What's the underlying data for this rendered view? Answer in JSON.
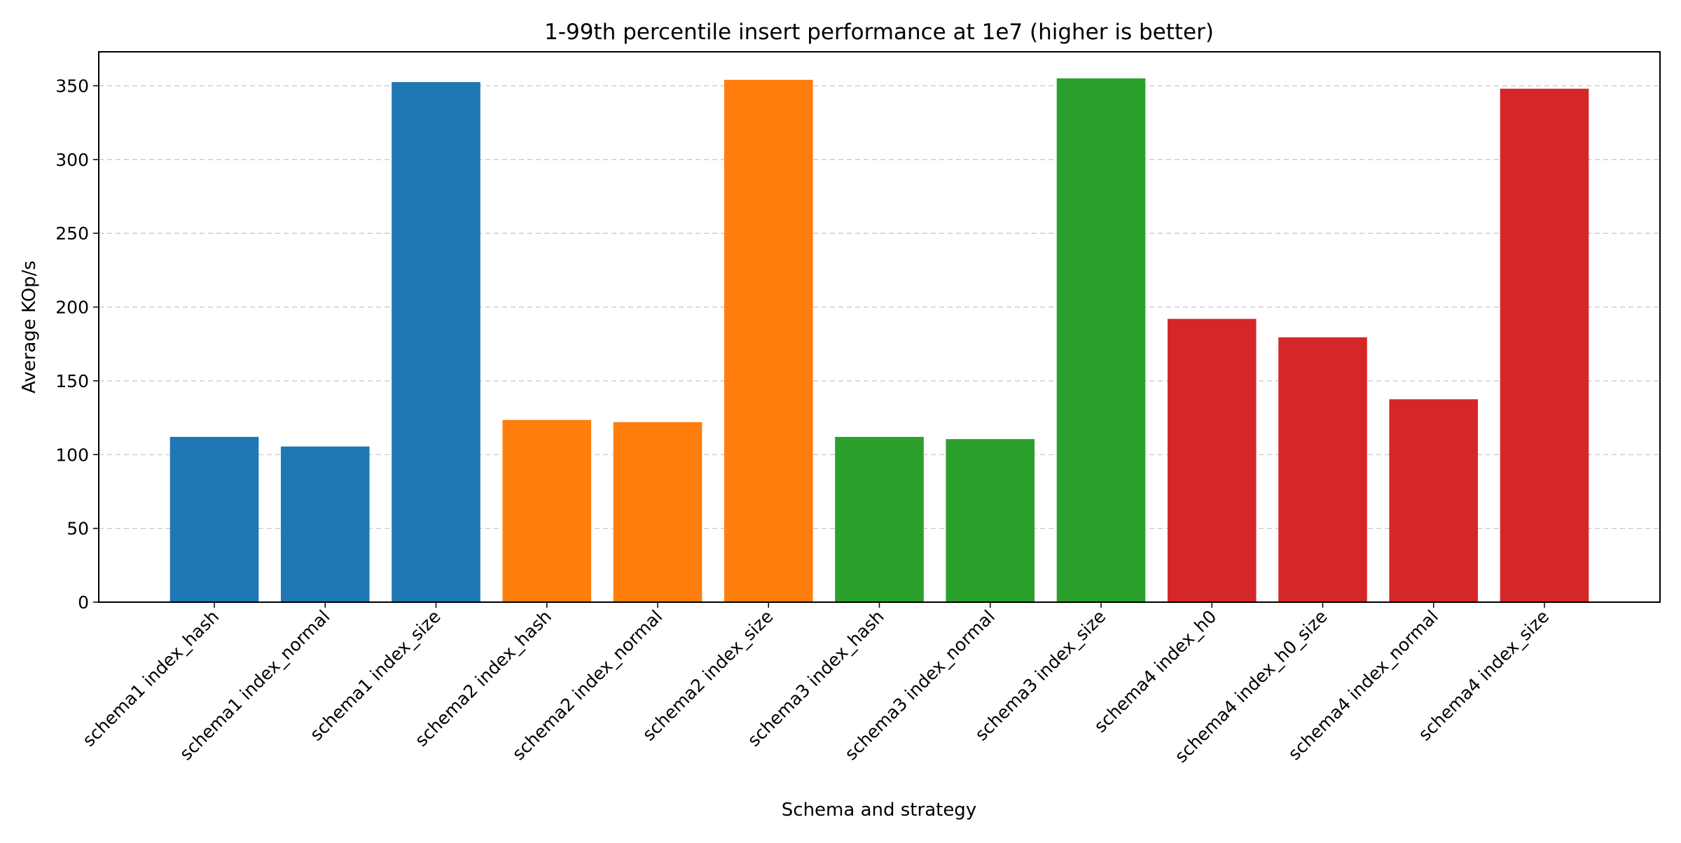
{
  "chart_data": {
    "type": "bar",
    "title": "1-99th percentile insert performance at 1e7 (higher is better)",
    "xlabel": "Schema and strategy",
    "ylabel": "Average KOp/s",
    "ylim": [
      0,
      373
    ],
    "yticks": [
      0,
      50,
      100,
      150,
      200,
      250,
      300,
      350
    ],
    "grid": "y, dashed",
    "categories": [
      "schema1 index_hash",
      "schema1 index_normal",
      "schema1 index_size",
      "schema2 index_hash",
      "schema2 index_normal",
      "schema2 index_size",
      "schema3 index_hash",
      "schema3 index_normal",
      "schema3 index_size",
      "schema4 index_h0",
      "schema4 index_h0_size",
      "schema4 index_normal",
      "schema4 index_size"
    ],
    "values": [
      112,
      105.5,
      352.5,
      123.5,
      122,
      354,
      112,
      110.5,
      355,
      192,
      179.5,
      137.5,
      348
    ],
    "colors": [
      "#1f77b4",
      "#1f77b4",
      "#1f77b4",
      "#ff7f0e",
      "#ff7f0e",
      "#ff7f0e",
      "#2ca02c",
      "#2ca02c",
      "#2ca02c",
      "#d62728",
      "#d62728",
      "#d62728",
      "#d62728"
    ]
  }
}
